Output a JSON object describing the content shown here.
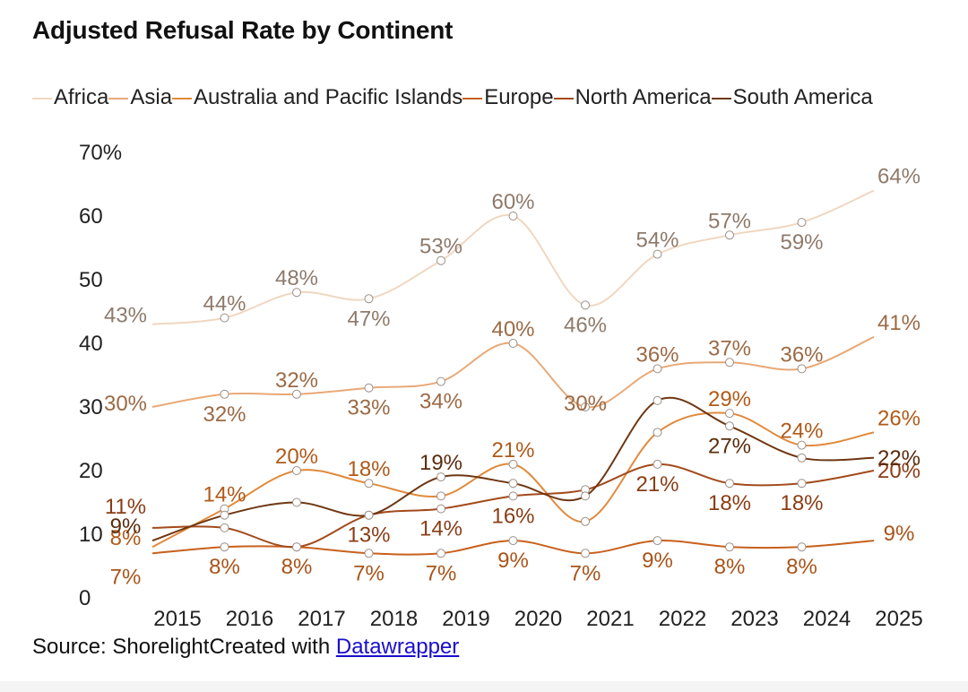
{
  "title": "Adjusted Refusal Rate by Continent",
  "footer": {
    "source_text": "Source: Shorelight",
    "created_text": "Created with ",
    "link_text": "Datawrapper"
  },
  "chart_data": {
    "type": "line",
    "title": "Adjusted Refusal Rate by Continent",
    "xlabel": "",
    "ylabel": "",
    "ylim": [
      0,
      70
    ],
    "y_ticks": [
      0,
      10,
      20,
      30,
      40,
      50,
      60,
      70
    ],
    "y_tick_labels": [
      "0",
      "10",
      "20",
      "30",
      "40",
      "50",
      "60",
      "70%"
    ],
    "categories": [
      "2015",
      "2016",
      "2017",
      "2018",
      "2019",
      "2020",
      "2021",
      "2022",
      "2023",
      "2024",
      "2025"
    ],
    "series": [
      {
        "name": "Africa",
        "color": "#f0d7c0",
        "label_color": "#8e7a6b",
        "values": [
          43,
          44,
          48,
          47,
          53,
          60,
          46,
          54,
          57,
          59,
          64
        ],
        "labels": [
          "43%",
          "44%",
          "48%",
          "47%",
          "53%",
          "60%",
          "46%",
          "54%",
          "57%",
          "59%",
          "64%"
        ]
      },
      {
        "name": "Asia",
        "color": "#e8a977",
        "label_color": "#9b6a45",
        "values": [
          30,
          32,
          32,
          33,
          34,
          40,
          30,
          36,
          37,
          36,
          41
        ],
        "labels": [
          "30%",
          "32%",
          "32%",
          "33%",
          "34%",
          "40%",
          "30%",
          "36%",
          "37%",
          "36%",
          "41%"
        ]
      },
      {
        "name": "Australia and Pacific Islands",
        "color": "#e08a3c",
        "label_color": "#b05a1a",
        "values": [
          8,
          14,
          20,
          18,
          16,
          21,
          12,
          26,
          29,
          24,
          26
        ],
        "labels": [
          "8%",
          "14%",
          "20%",
          "18%",
          "",
          "21%",
          "",
          "",
          "29%",
          "24%",
          "26%"
        ]
      },
      {
        "name": "Europe",
        "color": "#c8601c",
        "label_color": "#a8541a",
        "values": [
          7,
          8,
          8,
          7,
          7,
          9,
          7,
          9,
          8,
          8,
          9
        ],
        "labels": [
          "7%",
          "8%",
          "8%",
          "7%",
          "7%",
          "9%",
          "7%",
          "9%",
          "8%",
          "8%",
          "9%"
        ]
      },
      {
        "name": "North America",
        "color": "#a24a1b",
        "label_color": "#8a3d15",
        "values": [
          11,
          11,
          8,
          13,
          14,
          16,
          17,
          21,
          18,
          18,
          20
        ],
        "labels": [
          "11%",
          "",
          "",
          "13%",
          "14%",
          "16%",
          "",
          "21%",
          "18%",
          "18%",
          "20%"
        ]
      },
      {
        "name": "South America",
        "color": "#6e3712",
        "label_color": "#5a2d0e",
        "values": [
          9,
          13,
          15,
          13,
          19,
          18,
          16,
          31,
          27,
          22,
          22
        ],
        "labels": [
          "9%",
          "",
          "",
          "",
          "19%",
          "",
          "",
          "",
          "27%",
          "",
          "22%"
        ]
      }
    ]
  }
}
